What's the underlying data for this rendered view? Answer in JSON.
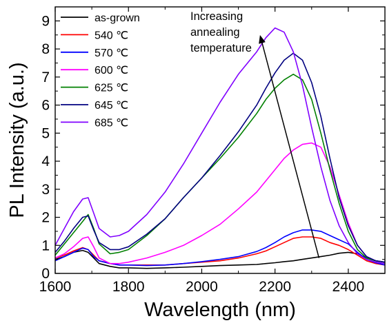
{
  "chart_data": {
    "type": "line",
    "xlabel": "Wavelength (nm)",
    "ylabel": "PL Intensity (a.u.)",
    "xlim": [
      1600,
      2500
    ],
    "ylim": [
      0,
      9.5
    ],
    "xticks": [
      1600,
      1800,
      2000,
      2200,
      2400
    ],
    "yticks": [
      0,
      1,
      2,
      3,
      4,
      5,
      6,
      7,
      8,
      9
    ],
    "grid": false,
    "legend_position": "top-left",
    "annotation": {
      "lines": [
        "Increasing",
        "annealing",
        "temperature"
      ],
      "arrow_from": [
        2320,
        0.55
      ],
      "arrow_to": [
        2160,
        8.45
      ]
    },
    "x": [
      1600,
      1625,
      1650,
      1675,
      1690,
      1705,
      1720,
      1750,
      1775,
      1800,
      1850,
      1900,
      1950,
      2000,
      2050,
      2100,
      2150,
      2175,
      2200,
      2225,
      2250,
      2275,
      2300,
      2325,
      2350,
      2375,
      2400,
      2425,
      2450,
      2475,
      2500
    ],
    "series": [
      {
        "name": "as-grown",
        "color": "#000000",
        "values": [
          0.5,
          0.6,
          0.75,
          0.82,
          0.75,
          0.55,
          0.35,
          0.25,
          0.2,
          0.2,
          0.18,
          0.2,
          0.22,
          0.25,
          0.28,
          0.3,
          0.32,
          0.35,
          0.38,
          0.42,
          0.45,
          0.5,
          0.55,
          0.6,
          0.65,
          0.72,
          0.75,
          0.7,
          0.55,
          0.45,
          0.4
        ]
      },
      {
        "name": "540 ℃",
        "color": "#ff0000",
        "values": [
          0.55,
          0.65,
          0.8,
          0.92,
          0.85,
          0.65,
          0.45,
          0.35,
          0.3,
          0.3,
          0.3,
          0.3,
          0.35,
          0.4,
          0.45,
          0.55,
          0.7,
          0.8,
          0.95,
          1.1,
          1.25,
          1.3,
          1.3,
          1.25,
          1.1,
          1.0,
          0.85,
          0.65,
          0.45,
          0.35,
          0.3
        ]
      },
      {
        "name": "570 ℃",
        "color": "#0000ff",
        "values": [
          0.45,
          0.6,
          0.75,
          0.9,
          0.85,
          0.6,
          0.45,
          0.35,
          0.3,
          0.3,
          0.28,
          0.3,
          0.35,
          0.42,
          0.5,
          0.6,
          0.78,
          0.92,
          1.1,
          1.3,
          1.45,
          1.55,
          1.55,
          1.5,
          1.35,
          1.2,
          1.05,
          0.75,
          0.5,
          0.38,
          0.3
        ]
      },
      {
        "name": "600 ℃",
        "color": "#ff00ff",
        "values": [
          0.55,
          0.7,
          0.95,
          1.25,
          1.3,
          0.95,
          0.55,
          0.35,
          0.35,
          0.4,
          0.55,
          0.75,
          1.0,
          1.35,
          1.75,
          2.3,
          2.9,
          3.3,
          3.7,
          4.1,
          4.4,
          4.6,
          4.65,
          4.5,
          3.8,
          2.8,
          1.8,
          1.0,
          0.6,
          0.45,
          0.4
        ]
      },
      {
        "name": "625 ℃",
        "color": "#008000",
        "values": [
          0.65,
          1.05,
          1.45,
          1.85,
          2.1,
          1.6,
          1.05,
          0.7,
          0.75,
          0.85,
          1.35,
          1.95,
          2.7,
          3.4,
          4.1,
          4.85,
          5.7,
          6.2,
          6.6,
          6.9,
          7.1,
          6.9,
          6.2,
          5.0,
          3.7,
          2.5,
          1.5,
          0.85,
          0.55,
          0.45,
          0.4
        ]
      },
      {
        "name": "645 ℃",
        "color": "#000080",
        "values": [
          0.75,
          1.15,
          1.6,
          2.0,
          2.05,
          1.55,
          1.1,
          0.85,
          0.85,
          0.95,
          1.4,
          1.95,
          2.7,
          3.4,
          4.2,
          5.05,
          6.0,
          6.6,
          7.15,
          7.6,
          7.85,
          7.6,
          6.8,
          5.6,
          4.1,
          2.7,
          1.7,
          1.0,
          0.6,
          0.45,
          0.4
        ]
      },
      {
        "name": "685 ℃",
        "color": "#8000ff",
        "values": [
          1.0,
          1.6,
          2.2,
          2.65,
          2.7,
          2.15,
          1.6,
          1.3,
          1.35,
          1.5,
          2.1,
          2.9,
          3.9,
          5.0,
          6.1,
          7.1,
          7.9,
          8.4,
          8.75,
          8.6,
          7.9,
          6.7,
          5.2,
          3.8,
          2.6,
          1.7,
          1.1,
          0.7,
          0.5,
          0.4,
          0.35
        ]
      }
    ]
  }
}
